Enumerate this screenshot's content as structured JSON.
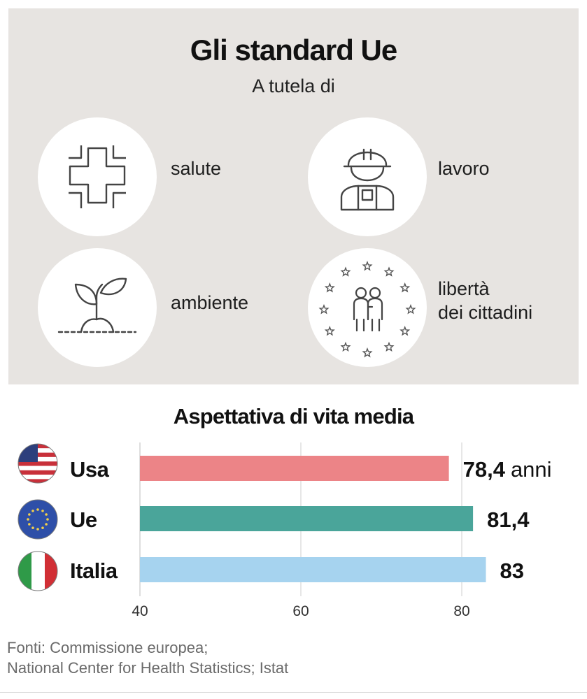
{
  "header": {
    "title": "Gli standard Ue",
    "subtitle": "A tutela di"
  },
  "protections": [
    {
      "icon": "health-cross-icon",
      "label_lines": [
        "salute"
      ]
    },
    {
      "icon": "worker-helmet-icon",
      "label_lines": [
        "lavoro"
      ]
    },
    {
      "icon": "plant-sprout-icon",
      "label_lines": [
        "ambiente"
      ]
    },
    {
      "icon": "eu-stars-people-icon",
      "label_lines": [
        "libertà",
        "dei cittadini"
      ]
    }
  ],
  "chart_data": {
    "type": "bar",
    "orientation": "horizontal",
    "title": "Aspettativa di vita media",
    "categories": [
      "Usa",
      "Ue",
      "Italia"
    ],
    "values": [
      78.4,
      81.4,
      83
    ],
    "value_labels": [
      "78,4",
      "81,4",
      "83"
    ],
    "unit_label": "anni",
    "flag_icons": [
      "usa-flag-icon",
      "eu-flag-icon",
      "italy-flag-icon"
    ],
    "colors": [
      "#ec8487",
      "#4aa59a",
      "#a6d3ef"
    ],
    "xlim": [
      40,
      83
    ],
    "xticks": [
      40,
      60,
      80
    ],
    "grid": true
  },
  "sources": {
    "line1": "Fonti: Commissione europea;",
    "line2": "National Center for Health Statistics; Istat"
  }
}
